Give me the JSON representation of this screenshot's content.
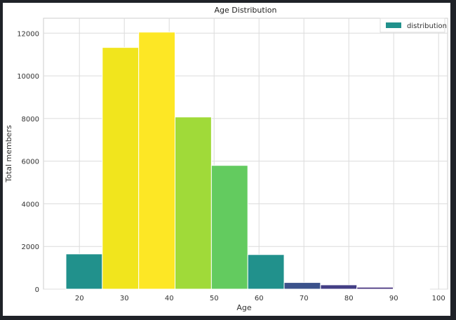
{
  "chart_data": {
    "type": "bar",
    "title": "Age Distribution",
    "xlabel": "Age",
    "ylabel": "Total members",
    "xlim": [
      12,
      102
    ],
    "ylim": [
      0,
      12700
    ],
    "xticks": [
      20,
      30,
      40,
      50,
      60,
      70,
      80,
      90,
      100
    ],
    "yticks": [
      0,
      2000,
      4000,
      6000,
      8000,
      10000,
      12000
    ],
    "grid": true,
    "legend": {
      "position": "top-right",
      "entries": [
        "distribution"
      ]
    },
    "legend_color": "#21918c",
    "bins": [
      {
        "start": 17.0,
        "end": 25.1,
        "value": 1650,
        "color": "#21918c"
      },
      {
        "start": 25.1,
        "end": 33.2,
        "value": 11330,
        "color": "#f1e51d"
      },
      {
        "start": 33.2,
        "end": 41.3,
        "value": 12050,
        "color": "#fde725"
      },
      {
        "start": 41.3,
        "end": 49.4,
        "value": 8070,
        "color": "#a0da39"
      },
      {
        "start": 49.4,
        "end": 57.5,
        "value": 5800,
        "color": "#63cb5f"
      },
      {
        "start": 57.5,
        "end": 65.6,
        "value": 1620,
        "color": "#21918c"
      },
      {
        "start": 65.6,
        "end": 73.7,
        "value": 310,
        "color": "#3b528b"
      },
      {
        "start": 73.7,
        "end": 81.8,
        "value": 200,
        "color": "#433e85"
      },
      {
        "start": 81.8,
        "end": 89.9,
        "value": 90,
        "color": "#46327e"
      },
      {
        "start": 89.9,
        "end": 98.0,
        "value": 15,
        "color": "#440154"
      }
    ]
  }
}
